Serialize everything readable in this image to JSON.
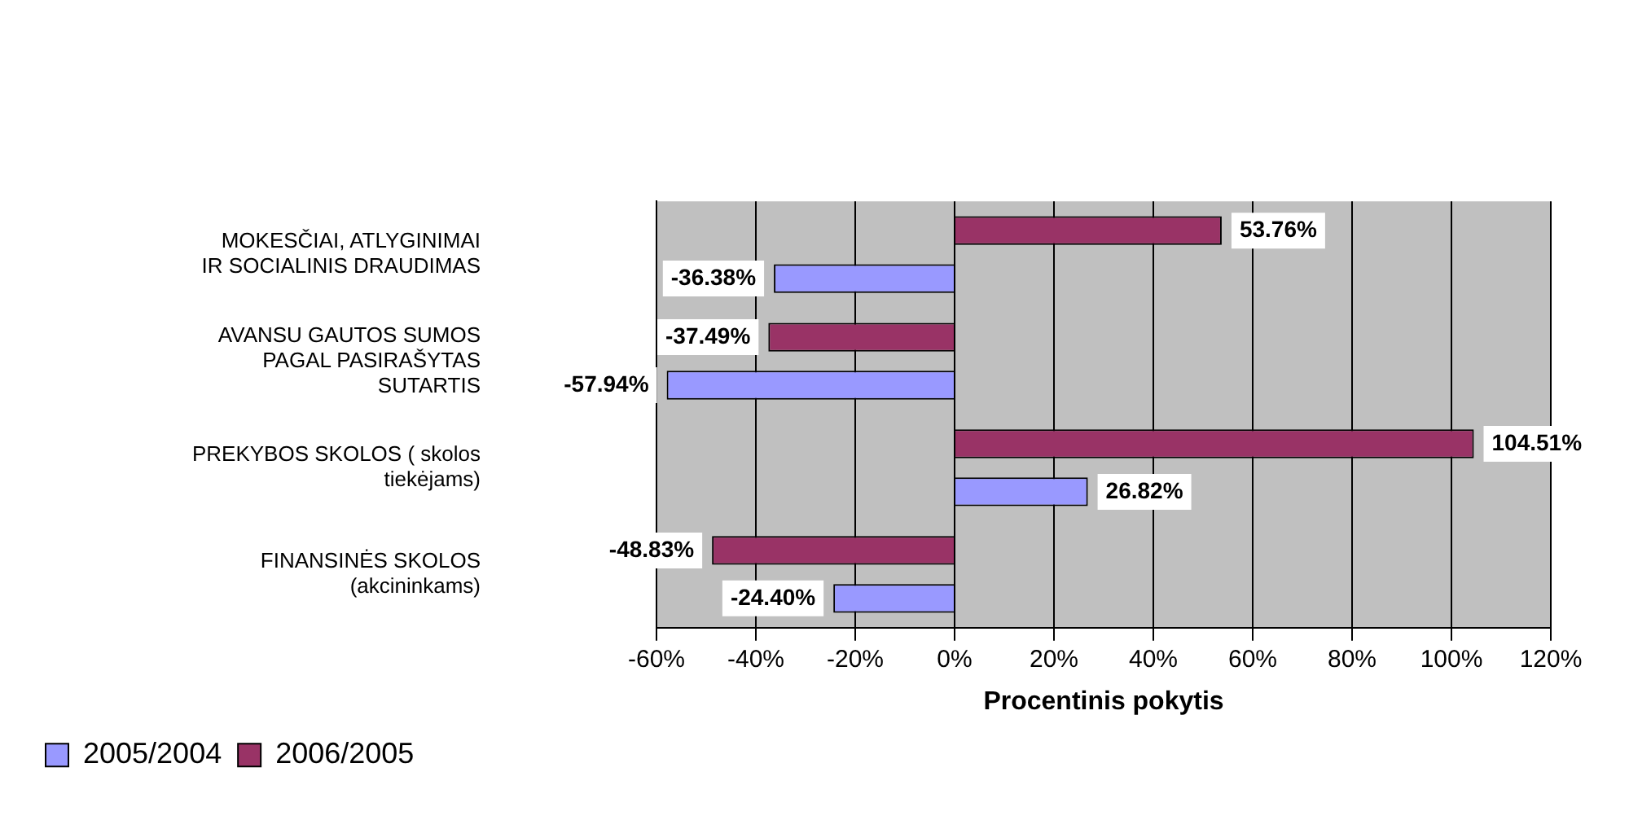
{
  "chart_data": {
    "type": "bar",
    "orientation": "horizontal",
    "xlabel": "Procentinis pokytis",
    "categories": [
      "MOKESČIAI, ATLYGINIMAI IR SOCIALINIS DRAUDIMAS",
      "AVANSU GAUTOS SUMOS PAGAL PASIRAŠYTAS SUTARTIS",
      "PREKYBOS SKOLOS ( skolos tiekėjams)",
      "FINANSINĖS SKOLOS (akcininkams)"
    ],
    "series": [
      {
        "name": "2005/2004",
        "color": "#9999ff",
        "values": [
          -36.38,
          -57.94,
          26.82,
          -24.4
        ],
        "value_labels": [
          "-36.38%",
          "-57.94%",
          "26.82%",
          "-24.40%"
        ]
      },
      {
        "name": "2006/2005",
        "color": "#993366",
        "values": [
          53.76,
          -37.49,
          104.51,
          -48.83
        ],
        "value_labels": [
          "53.76%",
          "-37.49%",
          "104.51%",
          "-48.83%"
        ]
      }
    ],
    "xlim": [
      -60,
      120
    ],
    "xticks": [
      {
        "value": -60,
        "label": "-60%"
      },
      {
        "value": -40,
        "label": "-40%"
      },
      {
        "value": -20,
        "label": "-20%"
      },
      {
        "value": 0,
        "label": "0%"
      },
      {
        "value": 20,
        "label": "20%"
      },
      {
        "value": 40,
        "label": "40%"
      },
      {
        "value": 60,
        "label": "60%"
      },
      {
        "value": 80,
        "label": "80%"
      },
      {
        "value": 100,
        "label": "100%"
      },
      {
        "value": 120,
        "label": "120%"
      }
    ],
    "grid": "x",
    "legend": "bottom left"
  }
}
